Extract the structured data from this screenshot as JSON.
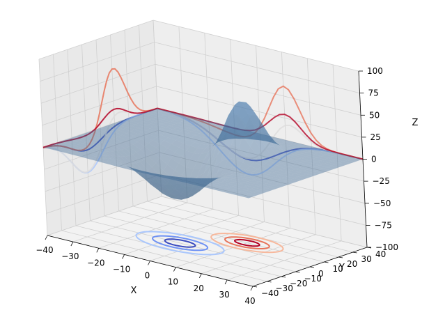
{
  "chart_data": {
    "type": "surface3d",
    "description": "3D surface with contour projections onto the three back planes",
    "xlabel": "X",
    "ylabel": "Y",
    "zlabel": "Z",
    "xlim": [
      -40,
      40
    ],
    "ylim": [
      -40,
      40
    ],
    "zlim": [
      -100,
      100
    ],
    "xticks": [
      "−40",
      "−30",
      "−20",
      "−10",
      "0",
      "10",
      "20",
      "30",
      "40"
    ],
    "yticks": [
      "−40",
      "−30",
      "−20",
      "−10",
      "0",
      "10",
      "20",
      "30",
      "40"
    ],
    "zticks": [
      "−100",
      "−75",
      "−50",
      "−25",
      "0",
      "25",
      "50",
      "75",
      "100"
    ],
    "grid": true,
    "surface": {
      "color": "#4a86b8",
      "alpha": 0.4,
      "features": [
        {
          "kind": "peak",
          "x": 10,
          "y": 10,
          "z": 65
        },
        {
          "kind": "trough",
          "x": -5,
          "y": -10,
          "z": -50
        }
      ]
    },
    "projections": {
      "z_floor_offset": -100,
      "x_wall_offset": -40,
      "y_wall_offset": 40,
      "colormap": "coolwarm"
    }
  }
}
